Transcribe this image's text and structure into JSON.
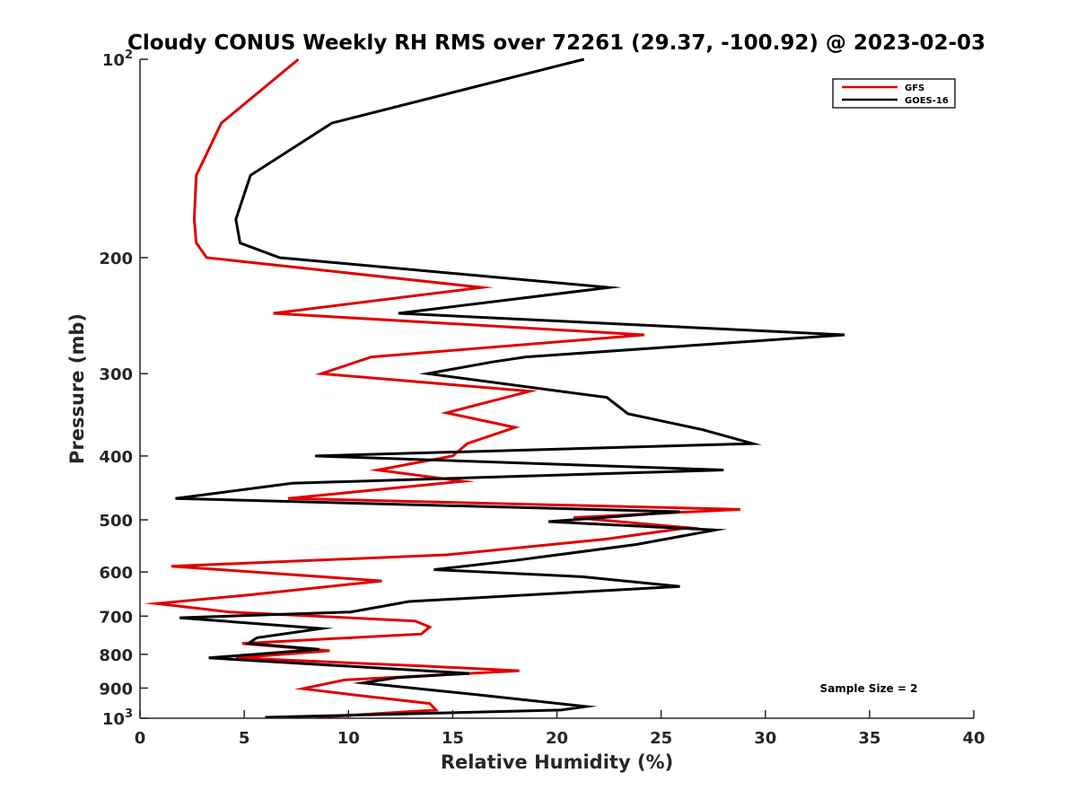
{
  "chart_data": {
    "type": "line",
    "title": "Cloudy CONUS Weekly RH RMS over 72261 (29.37, -100.92) @ 2023-02-03",
    "xlabel": "Relative Humidity (%)",
    "ylabel": "Pressure (mb)",
    "xlim": [
      0,
      40
    ],
    "ylim": [
      1000,
      100
    ],
    "yscale": "log",
    "y_reversed": true,
    "x_ticks": [
      "0",
      "5",
      "10",
      "15",
      "20",
      "25",
      "30",
      "35",
      "40"
    ],
    "y_ticks": [
      {
        "value": 100,
        "base": "10",
        "exp": "2"
      },
      {
        "value": 200,
        "label": "200"
      },
      {
        "value": 300,
        "label": "300"
      },
      {
        "value": 400,
        "label": "400"
      },
      {
        "value": 500,
        "label": "500"
      },
      {
        "value": 600,
        "label": "600"
      },
      {
        "value": 700,
        "label": "700"
      },
      {
        "value": 800,
        "label": "800"
      },
      {
        "value": 900,
        "label": "900"
      },
      {
        "value": 1000,
        "base": "10",
        "exp": "3"
      }
    ],
    "grid": false,
    "legend_position": "top-right",
    "annotation": "Sample Size = 2",
    "series": [
      {
        "name": "GFS",
        "color": "#e00000",
        "points": [
          [
            7.6,
            100
          ],
          [
            3.9,
            125
          ],
          [
            2.7,
            150
          ],
          [
            2.6,
            175
          ],
          [
            2.7,
            190
          ],
          [
            3.2,
            200
          ],
          [
            16.4,
            222
          ],
          [
            6.4,
            243
          ],
          [
            24.2,
            262
          ],
          [
            11.1,
            283
          ],
          [
            8.7,
            300
          ],
          [
            18.7,
            319
          ],
          [
            14.7,
            344
          ],
          [
            18.0,
            362
          ],
          [
            15.7,
            383
          ],
          [
            15.0,
            400
          ],
          [
            11.4,
            420
          ],
          [
            15.5,
            437
          ],
          [
            7.1,
            464
          ],
          [
            28.8,
            482
          ],
          [
            20.8,
            496
          ],
          [
            26.3,
            514
          ],
          [
            22.3,
            535
          ],
          [
            14.7,
            565
          ],
          [
            1.5,
            588
          ],
          [
            11.6,
            619
          ],
          [
            5.2,
            650
          ],
          [
            0.8,
            670
          ],
          [
            4.3,
            690
          ],
          [
            13.2,
            712
          ],
          [
            13.9,
            727
          ],
          [
            13.5,
            745
          ],
          [
            4.9,
            770
          ],
          [
            9.1,
            790
          ],
          [
            4.6,
            810
          ],
          [
            13.5,
            833
          ],
          [
            18.2,
            847
          ],
          [
            9.8,
            875
          ],
          [
            7.8,
            902
          ],
          [
            10.3,
            922
          ],
          [
            13.9,
            950
          ],
          [
            14.2,
            972
          ],
          [
            8.5,
            997
          ]
        ]
      },
      {
        "name": "GOES-16",
        "color": "#000000",
        "points": [
          [
            21.3,
            100
          ],
          [
            9.2,
            125
          ],
          [
            5.3,
            150
          ],
          [
            4.6,
            175
          ],
          [
            4.8,
            190
          ],
          [
            6.7,
            200
          ],
          [
            22.5,
            222
          ],
          [
            12.4,
            243
          ],
          [
            33.8,
            262
          ],
          [
            18.5,
            283
          ],
          [
            16.9,
            288
          ],
          [
            13.8,
            300
          ],
          [
            22.4,
            326
          ],
          [
            23.4,
            345
          ],
          [
            27.0,
            365
          ],
          [
            29.4,
            383
          ],
          [
            8.4,
            400
          ],
          [
            28.0,
            420
          ],
          [
            7.3,
            440
          ],
          [
            1.7,
            464
          ],
          [
            25.9,
            486
          ],
          [
            19.6,
            503
          ],
          [
            27.6,
            518
          ],
          [
            23.8,
            545
          ],
          [
            18.0,
            576
          ],
          [
            14.1,
            595
          ],
          [
            21.2,
            610
          ],
          [
            25.9,
            631
          ],
          [
            12.9,
            665
          ],
          [
            10.1,
            690
          ],
          [
            1.9,
            704
          ],
          [
            8.7,
            731
          ],
          [
            5.6,
            755
          ],
          [
            5.2,
            770
          ],
          [
            8.6,
            786
          ],
          [
            3.3,
            810
          ],
          [
            15.8,
            855
          ],
          [
            12.3,
            868
          ],
          [
            10.7,
            884
          ],
          [
            16.0,
            920
          ],
          [
            21.4,
            960
          ],
          [
            20.2,
            972
          ],
          [
            6.0,
            997
          ]
        ]
      }
    ]
  }
}
